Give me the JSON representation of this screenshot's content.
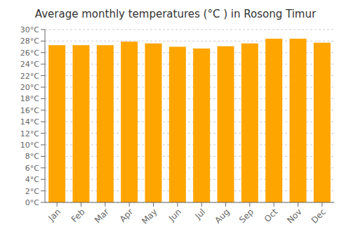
{
  "chart_data": {
    "type": "bar",
    "title": "Average monthly temperatures (°C ) in Rosong Timur",
    "categories": [
      "Jan",
      "Feb",
      "Mar",
      "Apr",
      "May",
      "Jun",
      "Jul",
      "Aug",
      "Sep",
      "Oct",
      "Nov",
      "Dec"
    ],
    "values": [
      27.3,
      27.3,
      27.3,
      27.9,
      27.6,
      27.0,
      26.7,
      27.1,
      27.6,
      28.4,
      28.4,
      27.7
    ],
    "color": "#FFA500",
    "ylim": [
      0,
      30
    ],
    "yticks": [
      {
        "value": 0,
        "label": "0°C"
      },
      {
        "value": 2,
        "label": "2°C"
      },
      {
        "value": 4,
        "label": "4°C"
      },
      {
        "value": 6,
        "label": "6°C"
      },
      {
        "value": 8,
        "label": "8°C"
      },
      {
        "value": 10,
        "label": "10°C"
      },
      {
        "value": 12,
        "label": "12°C"
      },
      {
        "value": 14,
        "label": "14°C"
      },
      {
        "value": 16,
        "label": "16°C"
      },
      {
        "value": 18,
        "label": "18°C"
      },
      {
        "value": 20,
        "label": "20°C"
      },
      {
        "value": 22,
        "label": "22°C"
      },
      {
        "value": 24,
        "label": "24°C"
      },
      {
        "value": 26,
        "label": "26°C"
      },
      {
        "value": 28,
        "label": "28°C"
      },
      {
        "value": 30,
        "label": "30°C"
      }
    ],
    "grid": true
  }
}
